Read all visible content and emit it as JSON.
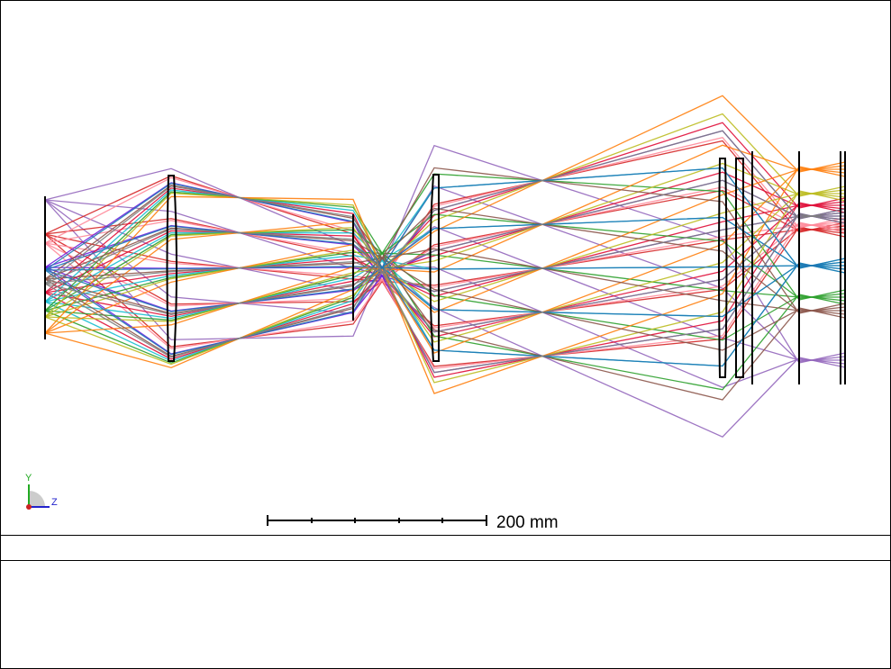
{
  "scale_bar": {
    "label": "200 mm"
  },
  "axes": {
    "y": "Y",
    "z": "Z"
  }
}
